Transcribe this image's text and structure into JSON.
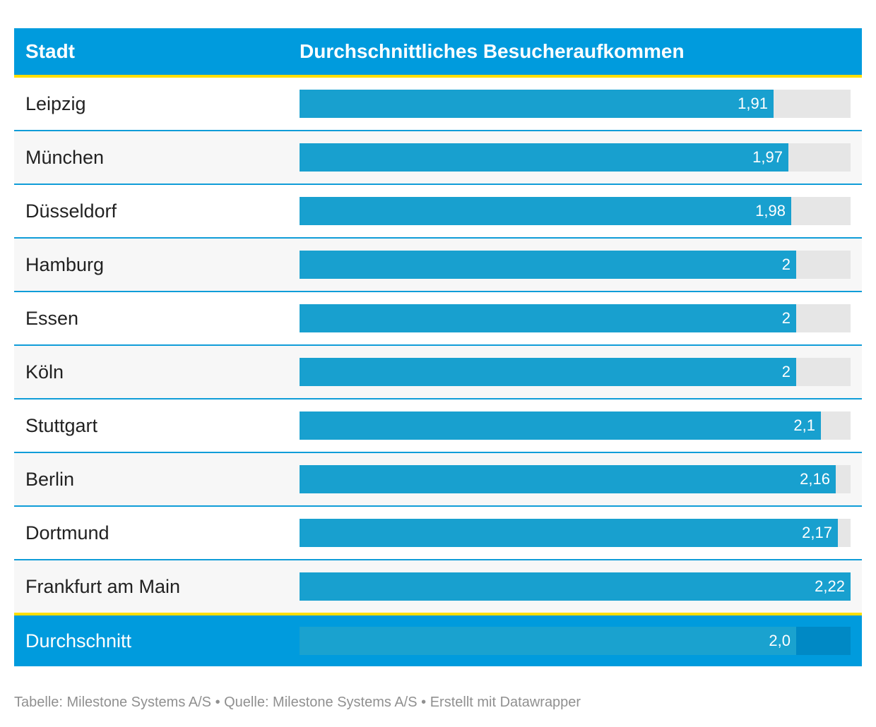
{
  "colors": {
    "header_bg": "#009bdd",
    "accent_line": "#ffde00",
    "bar_fill": "#18a0cf",
    "bar_track": "#e6e6e6",
    "row_divider": "#109dd8",
    "footer_bg": "#009bdd"
  },
  "header": {
    "city_label": "Stadt",
    "value_label": "Durchschnittliches Besucheraufkommen"
  },
  "chart_data": {
    "type": "bar",
    "orientation": "horizontal",
    "title": "",
    "xlabel": "",
    "ylabel": "",
    "xlim": [
      0,
      2.22
    ],
    "grid": false,
    "categories": [
      "Leipzig",
      "München",
      "Düsseldorf",
      "Hamburg",
      "Essen",
      "Köln",
      "Stuttgart",
      "Berlin",
      "Dortmund",
      "Frankfurt am Main"
    ],
    "values": [
      1.91,
      1.97,
      1.98,
      2,
      2,
      2,
      2.1,
      2.16,
      2.17,
      2.22
    ],
    "value_labels": [
      "1,91",
      "1,97",
      "1,98",
      "2",
      "2",
      "2",
      "2,1",
      "2,16",
      "2,17",
      "2,22"
    ],
    "summary": {
      "label": "Durchschnitt",
      "value": 2.0,
      "value_label": "2,0"
    }
  },
  "source_line": "Tabelle: Milestone Systems A/S • Quelle: Milestone Systems A/S • Erstellt mit Datawrapper"
}
